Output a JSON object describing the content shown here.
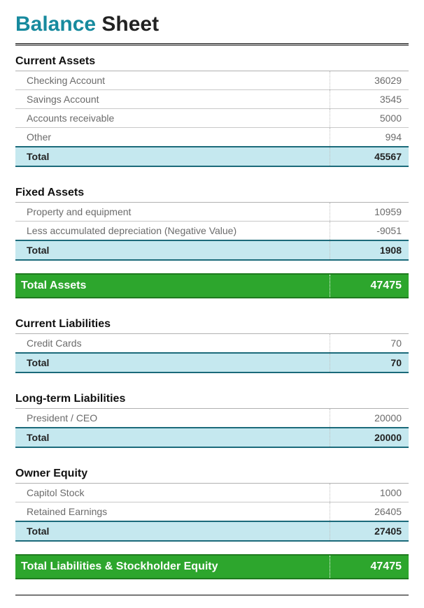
{
  "title": {
    "accent": "Balance",
    "rest": " Sheet"
  },
  "colors": {
    "accent_text": "#178a9e",
    "subtotal_bg": "#c5e8ef",
    "subtotal_border": "#1b6a7a",
    "grand_bg": "#2da62d",
    "grand_border": "#1f7a1f",
    "row_text": "#6b6b6b",
    "row_border": "#c8c8c8",
    "dotted_sep": "#bfbfbf"
  },
  "typography": {
    "title_fontsize": 30,
    "section_header_fontsize": 16,
    "row_fontsize": 14,
    "grand_fontsize": 16
  },
  "sections": {
    "current_assets": {
      "heading": "Current Assets",
      "rows": [
        {
          "label": "Checking Account",
          "value": "36029"
        },
        {
          "label": "Savings Account",
          "value": "3545"
        },
        {
          "label": "Accounts receivable",
          "value": "5000"
        },
        {
          "label": "Other",
          "value": "994"
        }
      ],
      "total_label": "Total",
      "total_value": "45567"
    },
    "fixed_assets": {
      "heading": "Fixed Assets",
      "rows": [
        {
          "label": "Property and equipment",
          "value": "10959"
        },
        {
          "label": "Less accumulated depreciation (Negative Value)",
          "value": "-9051"
        }
      ],
      "total_label": "Total",
      "total_value": "1908"
    },
    "current_liabilities": {
      "heading": "Current Liabilities",
      "rows": [
        {
          "label": "Credit Cards",
          "value": "70"
        }
      ],
      "total_label": "Total",
      "total_value": "70"
    },
    "longterm_liabilities": {
      "heading": "Long-term Liabilities",
      "rows": [
        {
          "label": "President / CEO",
          "value": "20000"
        }
      ],
      "total_label": "Total",
      "total_value": "20000"
    },
    "owner_equity": {
      "heading": "Owner Equity",
      "rows": [
        {
          "label": "Capitol Stock",
          "value": "1000"
        },
        {
          "label": "Retained Earnings",
          "value": "26405"
        }
      ],
      "total_label": "Total",
      "total_value": "27405"
    }
  },
  "grand_totals": {
    "total_assets": {
      "label": "Total Assets",
      "value": "47475"
    },
    "total_liab_equity": {
      "label": "Total Liabilities & Stockholder Equity",
      "value": "47475"
    }
  }
}
